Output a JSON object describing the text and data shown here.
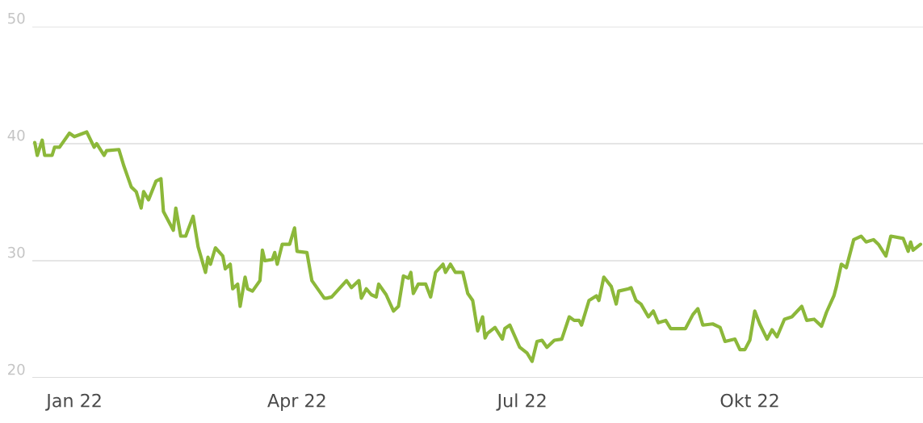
{
  "chart_data": {
    "type": "line",
    "x": [
      "2021-12-16",
      "2021-12-17",
      "2021-12-19",
      "2021-12-20",
      "2021-12-23",
      "2021-12-24",
      "2021-12-26",
      "2021-12-30",
      "2022-01-01",
      "2022-01-06",
      "2022-01-09",
      "2022-01-10",
      "2022-01-13",
      "2022-01-14",
      "2022-01-19",
      "2022-01-21",
      "2022-01-24",
      "2022-01-26",
      "2022-01-28",
      "2022-01-29",
      "2022-01-31",
      "2022-02-03",
      "2022-02-05",
      "2022-02-06",
      "2022-02-10",
      "2022-02-11",
      "2022-02-13",
      "2022-02-15",
      "2022-02-18",
      "2022-02-20",
      "2022-02-23",
      "2022-02-24",
      "2022-02-25",
      "2022-02-27",
      "2022-03-02",
      "2022-03-03",
      "2022-03-05",
      "2022-03-06",
      "2022-03-08",
      "2022-03-09",
      "2022-03-11",
      "2022-03-12",
      "2022-03-14",
      "2022-03-17",
      "2022-03-18",
      "2022-03-19",
      "2022-03-22",
      "2022-03-23",
      "2022-03-24",
      "2022-03-26",
      "2022-03-29",
      "2022-03-31",
      "2022-04-01",
      "2022-04-05",
      "2022-04-07",
      "2022-04-10",
      "2022-04-12",
      "2022-04-13",
      "2022-04-15",
      "2022-04-21",
      "2022-04-23",
      "2022-04-26",
      "2022-04-27",
      "2022-04-29",
      "2022-05-01",
      "2022-05-03",
      "2022-05-04",
      "2022-05-07",
      "2022-05-10",
      "2022-05-12",
      "2022-05-14",
      "2022-05-16",
      "2022-05-17",
      "2022-05-18",
      "2022-05-20",
      "2022-05-23",
      "2022-05-25",
      "2022-05-27",
      "2022-05-30",
      "2022-05-31",
      "2022-06-02",
      "2022-06-04",
      "2022-06-07",
      "2022-06-09",
      "2022-06-11",
      "2022-06-13",
      "2022-06-15",
      "2022-06-16",
      "2022-06-17",
      "2022-06-20",
      "2022-06-23",
      "2022-06-24",
      "2022-06-26",
      "2022-06-30",
      "2022-07-03",
      "2022-07-05",
      "2022-07-07",
      "2022-07-09",
      "2022-07-11",
      "2022-07-14",
      "2022-07-17",
      "2022-07-20",
      "2022-07-22",
      "2022-07-24",
      "2022-07-25",
      "2022-07-28",
      "2022-07-31",
      "2022-08-01",
      "2022-08-03",
      "2022-08-06",
      "2022-08-08",
      "2022-08-09",
      "2022-08-13",
      "2022-08-14",
      "2022-08-16",
      "2022-08-18",
      "2022-08-21",
      "2022-08-23",
      "2022-08-25",
      "2022-08-28",
      "2022-08-30",
      "2022-09-05",
      "2022-09-08",
      "2022-09-10",
      "2022-09-12",
      "2022-09-16",
      "2022-09-19",
      "2022-09-21",
      "2022-09-25",
      "2022-09-27",
      "2022-09-29",
      "2022-10-01",
      "2022-10-03",
      "2022-10-05",
      "2022-10-08",
      "2022-10-10",
      "2022-10-12",
      "2022-10-15",
      "2022-10-18",
      "2022-10-22",
      "2022-10-24",
      "2022-10-27",
      "2022-10-30",
      "2022-11-01",
      "2022-11-04",
      "2022-11-05",
      "2022-11-07",
      "2022-11-09",
      "2022-11-12",
      "2022-11-15",
      "2022-11-17",
      "2022-11-20",
      "2022-11-22",
      "2022-11-25",
      "2022-11-27",
      "2022-12-02",
      "2022-12-04",
      "2022-12-05",
      "2022-12-06",
      "2022-12-09"
    ],
    "series": [
      {
        "color": "#8cb83a",
        "values": [
          40.1,
          39.0,
          40.3,
          39.0,
          39.0,
          39.7,
          39.7,
          40.9,
          40.6,
          41.0,
          39.7,
          40.0,
          39.0,
          39.4,
          39.5,
          38.1,
          36.3,
          35.9,
          34.5,
          35.9,
          35.2,
          36.8,
          37.0,
          34.2,
          32.6,
          34.5,
          32.1,
          32.1,
          33.8,
          31.2,
          29.0,
          30.3,
          29.7,
          31.1,
          30.4,
          29.3,
          29.7,
          27.6,
          28.0,
          26.1,
          28.6,
          27.6,
          27.4,
          28.3,
          30.9,
          30.0,
          30.1,
          30.7,
          29.7,
          31.4,
          31.4,
          32.8,
          30.8,
          30.7,
          28.3,
          27.4,
          26.8,
          26.8,
          26.9,
          28.3,
          27.7,
          28.3,
          26.8,
          27.6,
          27.1,
          26.9,
          28.0,
          27.1,
          25.7,
          26.1,
          28.7,
          28.5,
          29.0,
          27.2,
          28.0,
          28.0,
          26.9,
          29.0,
          29.7,
          29.0,
          29.7,
          29.0,
          29.0,
          27.2,
          26.6,
          24.0,
          25.2,
          23.4,
          23.8,
          24.3,
          23.3,
          24.2,
          24.5,
          22.6,
          22.1,
          21.4,
          23.1,
          23.2,
          22.6,
          23.2,
          23.3,
          25.2,
          24.9,
          24.9,
          24.5,
          26.6,
          27.0,
          26.6,
          28.6,
          27.8,
          26.3,
          27.4,
          27.6,
          27.7,
          26.6,
          26.3,
          25.2,
          25.7,
          24.7,
          24.9,
          24.2,
          24.2,
          25.4,
          25.9,
          24.5,
          24.6,
          24.3,
          23.1,
          23.3,
          22.4,
          22.4,
          23.2,
          25.7,
          24.6,
          23.3,
          24.1,
          23.5,
          25.0,
          25.2,
          26.1,
          24.9,
          25.0,
          24.4,
          25.6,
          27.0,
          27.8,
          29.7,
          29.4,
          31.8,
          32.1,
          31.6,
          31.8,
          31.4,
          30.4,
          32.1,
          31.9,
          30.8,
          31.6,
          30.9,
          31.4
        ]
      }
    ],
    "xlim": [
      "2021-12-15",
      "2022-12-10"
    ],
    "xticks": [
      {
        "value": "2022-01-01",
        "label": "Jan 22"
      },
      {
        "value": "2022-04-01",
        "label": "Apr 22"
      },
      {
        "value": "2022-07-01",
        "label": "Jul 22"
      },
      {
        "value": "2022-10-01",
        "label": "Okt 22"
      }
    ],
    "ylim": [
      20,
      50
    ],
    "yticks": [
      20,
      30,
      40,
      50
    ],
    "grid": "y",
    "marker": "none",
    "line_style": "solid"
  }
}
